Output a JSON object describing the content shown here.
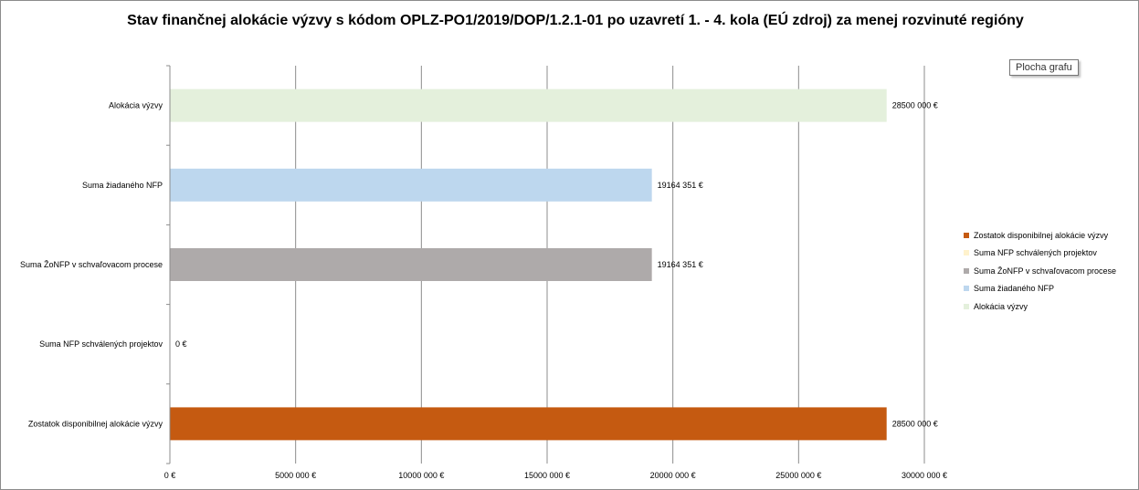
{
  "chart_data": {
    "type": "bar",
    "orientation": "horizontal",
    "title": "Stav finančnej alokácie výzvy s kódom OPLZ-PO1/2019/DOP/1.2.1-01 po uzavretí 1. - 4. kola (EÚ zdroj) za menej rozvinuté regióny",
    "categories": [
      "Alokácia výzvy",
      "Suma žiadaného NFP",
      "Suma ŽoNFP v schvaľovacom procese",
      "Suma NFP schválených projektov",
      "Zostatok disponibilnej alokácie výzvy"
    ],
    "values": [
      28500000,
      19164351,
      19164351,
      0,
      28500000
    ],
    "value_labels": [
      "28500 000 €",
      "19164 351 €",
      "19164 351 €",
      "0 €",
      "28500 000 €"
    ],
    "colors": [
      "#e4f0dc",
      "#bdd7ee",
      "#aeaaaa",
      "#fff2cc",
      "#c55a11"
    ],
    "x_ticks": [
      0,
      5000000,
      10000000,
      15000000,
      20000000,
      25000000,
      30000000
    ],
    "x_tick_labels": [
      "0 €",
      "5000 000 €",
      "10000 000 €",
      "15000 000 €",
      "20000 000 €",
      "25000 000 €",
      "30000 000 €"
    ],
    "xlim": [
      0,
      30000000
    ],
    "grid": true,
    "legend_position": "right",
    "legend": [
      {
        "label": "Zostatok disponibilnej alokácie výzvy",
        "color": "#c55a11"
      },
      {
        "label": "Suma NFP schválených projektov",
        "color": "#fff2cc"
      },
      {
        "label": "Suma ŽoNFP v schvaľovacom procese",
        "color": "#aeaaaa"
      },
      {
        "label": "Suma žiadaného NFP",
        "color": "#bdd7ee"
      },
      {
        "label": "Alokácia výzvy",
        "color": "#e4f0dc"
      }
    ]
  },
  "tooltip": "Plocha grafu"
}
